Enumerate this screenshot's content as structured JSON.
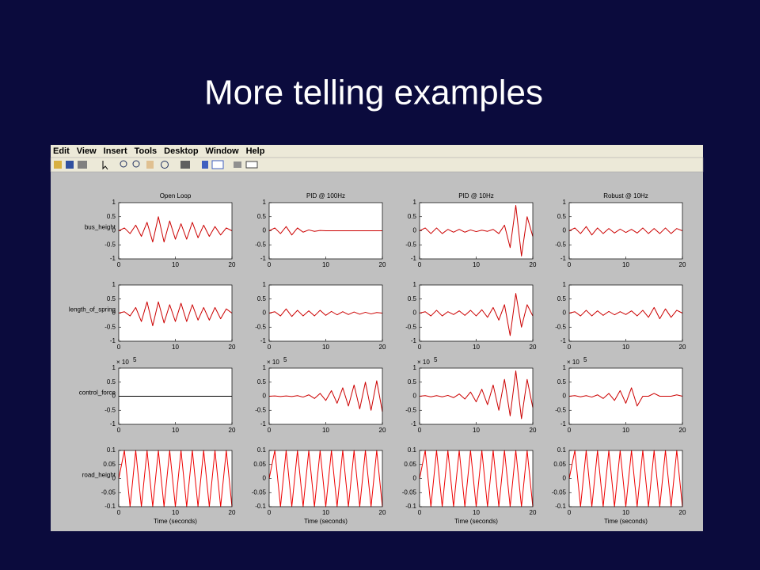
{
  "title": "More telling examples",
  "menu": [
    "Edit",
    "View",
    "Insert",
    "Tools",
    "Desktop",
    "Window",
    "Help"
  ],
  "chart_data": [
    {
      "type": "line",
      "title": "Open Loop",
      "ylabel": "bus_height",
      "color": "#cc0000",
      "xlim": [
        0,
        20
      ],
      "ylim": [
        -1,
        1
      ],
      "xticks": [
        0,
        10,
        20
      ],
      "yticks": [
        -1,
        -0.5,
        0,
        0.5,
        1
      ],
      "x": [
        0,
        1,
        2,
        3,
        4,
        5,
        6,
        7,
        8,
        9,
        10,
        11,
        12,
        13,
        14,
        15,
        16,
        17,
        18,
        19,
        20
      ],
      "values": [
        0,
        0.1,
        -0.1,
        0.2,
        -0.2,
        0.3,
        -0.4,
        0.5,
        -0.4,
        0.35,
        -0.3,
        0.25,
        -0.3,
        0.3,
        -0.25,
        0.2,
        -0.2,
        0.15,
        -0.15,
        0.1,
        0
      ]
    },
    {
      "type": "line",
      "title": "PID @ 100Hz",
      "color": "#cc0000",
      "xlim": [
        0,
        20
      ],
      "ylim": [
        -1,
        1
      ],
      "xticks": [
        0,
        10,
        20
      ],
      "yticks": [
        -1,
        -0.5,
        0,
        0.5,
        1
      ],
      "x": [
        0,
        1,
        2,
        3,
        4,
        5,
        6,
        7,
        8,
        9,
        10,
        11,
        12,
        13,
        14,
        15,
        16,
        17,
        18,
        19,
        20
      ],
      "values": [
        0,
        0.1,
        -0.1,
        0.15,
        -0.15,
        0.1,
        -0.05,
        0.03,
        -0.02,
        0.01,
        0,
        0,
        0,
        0,
        0,
        0,
        0,
        0,
        0,
        0,
        0
      ]
    },
    {
      "type": "line",
      "title": "PID @ 10Hz",
      "color": "#cc0000",
      "xlim": [
        0,
        20
      ],
      "ylim": [
        -1,
        1
      ],
      "xticks": [
        0,
        10,
        20
      ],
      "yticks": [
        -1,
        -0.5,
        0,
        0.5,
        1
      ],
      "x": [
        0,
        1,
        2,
        3,
        4,
        5,
        6,
        7,
        8,
        9,
        10,
        11,
        12,
        13,
        14,
        15,
        16,
        17,
        18,
        19,
        20
      ],
      "values": [
        0,
        0.1,
        -0.1,
        0.1,
        -0.1,
        0.05,
        -0.05,
        0.05,
        -0.05,
        0.03,
        -0.03,
        0.02,
        -0.02,
        0.05,
        -0.1,
        0.2,
        -0.6,
        0.9,
        -0.9,
        0.5,
        -0.2
      ]
    },
    {
      "type": "line",
      "title": "Robust @ 10Hz",
      "color": "#cc0000",
      "xlim": [
        0,
        20
      ],
      "ylim": [
        -1,
        1
      ],
      "xticks": [
        0,
        10,
        20
      ],
      "yticks": [
        -1,
        -0.5,
        0,
        0.5,
        1
      ],
      "x": [
        0,
        1,
        2,
        3,
        4,
        5,
        6,
        7,
        8,
        9,
        10,
        11,
        12,
        13,
        14,
        15,
        16,
        17,
        18,
        19,
        20
      ],
      "values": [
        0,
        0.1,
        -0.1,
        0.15,
        -0.15,
        0.1,
        -0.1,
        0.08,
        -0.08,
        0.06,
        -0.06,
        0.05,
        -0.08,
        0.1,
        -0.1,
        0.08,
        -0.1,
        0.1,
        -0.1,
        0.08,
        0
      ]
    },
    {
      "type": "line",
      "ylabel": "length_of_spring",
      "color": "#cc0000",
      "xlim": [
        0,
        20
      ],
      "ylim": [
        -1,
        1
      ],
      "xticks": [
        0,
        10,
        20
      ],
      "yticks": [
        -1,
        -0.5,
        0,
        0.5,
        1
      ],
      "x": [
        0,
        1,
        2,
        3,
        4,
        5,
        6,
        7,
        8,
        9,
        10,
        11,
        12,
        13,
        14,
        15,
        16,
        17,
        18,
        19,
        20
      ],
      "values": [
        0,
        0.05,
        -0.1,
        0.2,
        -0.3,
        0.4,
        -0.45,
        0.4,
        -0.35,
        0.3,
        -0.3,
        0.35,
        -0.3,
        0.3,
        -0.25,
        0.2,
        -0.25,
        0.2,
        -0.2,
        0.15,
        0
      ]
    },
    {
      "type": "line",
      "color": "#cc0000",
      "xlim": [
        0,
        20
      ],
      "ylim": [
        -1,
        1
      ],
      "xticks": [
        0,
        10,
        20
      ],
      "yticks": [
        -1,
        -0.5,
        0,
        0.5,
        1
      ],
      "x": [
        0,
        1,
        2,
        3,
        4,
        5,
        6,
        7,
        8,
        9,
        10,
        11,
        12,
        13,
        14,
        15,
        16,
        17,
        18,
        19,
        20
      ],
      "values": [
        0,
        0.05,
        -0.1,
        0.15,
        -0.12,
        0.1,
        -0.1,
        0.08,
        -0.1,
        0.1,
        -0.08,
        0.06,
        -0.06,
        0.05,
        -0.05,
        0.04,
        -0.04,
        0.03,
        -0.03,
        0.02,
        0
      ]
    },
    {
      "type": "line",
      "color": "#cc0000",
      "xlim": [
        0,
        20
      ],
      "ylim": [
        -1,
        1
      ],
      "xticks": [
        0,
        10,
        20
      ],
      "yticks": [
        -1,
        -0.5,
        0,
        0.5,
        1
      ],
      "x": [
        0,
        1,
        2,
        3,
        4,
        5,
        6,
        7,
        8,
        9,
        10,
        11,
        12,
        13,
        14,
        15,
        16,
        17,
        18,
        19,
        20
      ],
      "values": [
        0,
        0.05,
        -0.1,
        0.1,
        -0.1,
        0.05,
        -0.05,
        0.08,
        -0.08,
        0.1,
        -0.1,
        0.12,
        -0.15,
        0.2,
        -0.25,
        0.3,
        -0.8,
        0.7,
        -0.5,
        0.3,
        -0.1
      ]
    },
    {
      "type": "line",
      "color": "#cc0000",
      "xlim": [
        0,
        20
      ],
      "ylim": [
        -1,
        1
      ],
      "xticks": [
        0,
        10,
        20
      ],
      "yticks": [
        -1,
        -0.5,
        0,
        0.5,
        1
      ],
      "x": [
        0,
        1,
        2,
        3,
        4,
        5,
        6,
        7,
        8,
        9,
        10,
        11,
        12,
        13,
        14,
        15,
        16,
        17,
        18,
        19,
        20
      ],
      "values": [
        0,
        0.05,
        -0.1,
        0.1,
        -0.1,
        0.08,
        -0.08,
        0.06,
        -0.06,
        0.05,
        -0.05,
        0.08,
        -0.1,
        0.1,
        -0.15,
        0.2,
        -0.2,
        0.15,
        -0.15,
        0.1,
        0
      ]
    },
    {
      "type": "line",
      "ylabel": "control_force",
      "multiplier": {
        "base": "× 10",
        "exponent": "5"
      },
      "color": "#000000",
      "xlim": [
        0,
        20
      ],
      "ylim": [
        -1,
        1
      ],
      "xticks": [
        0,
        10,
        20
      ],
      "yticks": [
        -1,
        -0.5,
        0,
        0.5,
        1
      ],
      "x": [
        0,
        1,
        2,
        3,
        4,
        5,
        6,
        7,
        8,
        9,
        10,
        11,
        12,
        13,
        14,
        15,
        16,
        17,
        18,
        19,
        20
      ],
      "values": [
        0,
        0,
        0,
        0,
        0,
        0,
        0,
        0,
        0,
        0,
        0,
        0,
        0,
        0,
        0,
        0,
        0,
        0,
        0,
        0,
        0
      ]
    },
    {
      "type": "line",
      "multiplier": {
        "base": "× 10",
        "exponent": "5"
      },
      "color": "#cc0000",
      "xlim": [
        0,
        20
      ],
      "ylim": [
        -1,
        1
      ],
      "xticks": [
        0,
        10,
        20
      ],
      "yticks": [
        -1,
        -0.5,
        0,
        0.5,
        1
      ],
      "x": [
        0,
        1,
        2,
        3,
        4,
        5,
        6,
        7,
        8,
        9,
        10,
        11,
        12,
        13,
        14,
        15,
        16,
        17,
        18,
        19,
        20
      ],
      "values": [
        0,
        0.01,
        -0.01,
        0.01,
        -0.01,
        0.02,
        -0.03,
        0.05,
        -0.08,
        0.1,
        -0.15,
        0.2,
        -0.25,
        0.3,
        -0.35,
        0.4,
        -0.45,
        0.5,
        -0.5,
        0.55,
        -0.55
      ]
    },
    {
      "type": "line",
      "multiplier": {
        "base": "× 10",
        "exponent": "5"
      },
      "color": "#cc0000",
      "xlim": [
        0,
        20
      ],
      "ylim": [
        -1,
        1
      ],
      "xticks": [
        0,
        10,
        20
      ],
      "yticks": [
        -1,
        -0.5,
        0,
        0.5,
        1
      ],
      "x": [
        0,
        1,
        2,
        3,
        4,
        5,
        6,
        7,
        8,
        9,
        10,
        11,
        12,
        13,
        14,
        15,
        16,
        17,
        18,
        19,
        20
      ],
      "values": [
        0,
        0.02,
        -0.02,
        0.02,
        -0.02,
        0.03,
        -0.05,
        0.08,
        -0.1,
        0.15,
        -0.2,
        0.25,
        -0.3,
        0.4,
        -0.5,
        0.6,
        -0.7,
        0.9,
        -0.8,
        0.6,
        -0.4
      ]
    },
    {
      "type": "line",
      "multiplier": {
        "base": "× 10",
        "exponent": "5"
      },
      "color": "#cc0000",
      "xlim": [
        0,
        20
      ],
      "ylim": [
        -1,
        1
      ],
      "xticks": [
        0,
        10,
        20
      ],
      "yticks": [
        -1,
        -0.5,
        0,
        0.5,
        1
      ],
      "x": [
        0,
        1,
        2,
        3,
        4,
        5,
        6,
        7,
        8,
        9,
        10,
        11,
        12,
        13,
        14,
        15,
        16,
        17,
        18,
        19,
        20
      ],
      "values": [
        0,
        0.02,
        -0.02,
        0.02,
        -0.03,
        0.05,
        -0.08,
        0.1,
        -0.15,
        0.2,
        -0.25,
        0.3,
        -0.35,
        0,
        0,
        0.1,
        0,
        0,
        0,
        0.05,
        0
      ]
    },
    {
      "type": "line",
      "ylabel": "road_height",
      "xlabel": "Time (seconds)",
      "color": "#ee0000",
      "xlim": [
        0,
        20
      ],
      "ylim": [
        -0.1,
        0.1
      ],
      "xticks": [
        0,
        10,
        20
      ],
      "yticks": [
        -0.1,
        -0.05,
        0,
        0.05,
        0.1
      ],
      "x": [
        0,
        1,
        2,
        3,
        4,
        5,
        6,
        7,
        8,
        9,
        10,
        11,
        12,
        13,
        14,
        15,
        16,
        17,
        18,
        19,
        20
      ],
      "values": [
        0,
        0.1,
        -0.1,
        0.1,
        -0.1,
        0.1,
        -0.1,
        0.1,
        -0.1,
        0.1,
        -0.1,
        0.1,
        -0.1,
        0.1,
        -0.1,
        0.1,
        -0.1,
        0.1,
        -0.1,
        0.1,
        -0.1
      ]
    },
    {
      "type": "line",
      "xlabel": "Time (seconds)",
      "color": "#ee0000",
      "xlim": [
        0,
        20
      ],
      "ylim": [
        -0.1,
        0.1
      ],
      "xticks": [
        0,
        10,
        20
      ],
      "yticks": [
        -0.1,
        -0.05,
        0,
        0.05,
        0.1
      ],
      "x": [
        0,
        1,
        2,
        3,
        4,
        5,
        6,
        7,
        8,
        9,
        10,
        11,
        12,
        13,
        14,
        15,
        16,
        17,
        18,
        19,
        20
      ],
      "values": [
        0,
        0.1,
        -0.1,
        0.1,
        -0.1,
        0.1,
        -0.1,
        0.1,
        -0.1,
        0.1,
        -0.1,
        0.1,
        -0.1,
        0.1,
        -0.1,
        0.1,
        -0.1,
        0.1,
        -0.1,
        0.1,
        -0.1
      ]
    },
    {
      "type": "line",
      "xlabel": "Time (seconds)",
      "color": "#ee0000",
      "xlim": [
        0,
        20
      ],
      "ylim": [
        -0.1,
        0.1
      ],
      "xticks": [
        0,
        10,
        20
      ],
      "yticks": [
        -0.1,
        -0.05,
        0,
        0.05,
        0.1
      ],
      "x": [
        0,
        1,
        2,
        3,
        4,
        5,
        6,
        7,
        8,
        9,
        10,
        11,
        12,
        13,
        14,
        15,
        16,
        17,
        18,
        19,
        20
      ],
      "values": [
        0,
        0.1,
        -0.1,
        0.1,
        -0.1,
        0.1,
        -0.1,
        0.1,
        -0.1,
        0.1,
        -0.1,
        0.1,
        -0.1,
        0.1,
        -0.1,
        0.1,
        -0.1,
        0.1,
        -0.1,
        0.1,
        -0.1
      ]
    },
    {
      "type": "line",
      "xlabel": "Time (seconds)",
      "color": "#ee0000",
      "xlim": [
        0,
        20
      ],
      "ylim": [
        -0.1,
        0.1
      ],
      "xticks": [
        0,
        10,
        20
      ],
      "yticks": [
        -0.1,
        -0.05,
        0,
        0.05,
        0.1
      ],
      "x": [
        0,
        1,
        2,
        3,
        4,
        5,
        6,
        7,
        8,
        9,
        10,
        11,
        12,
        13,
        14,
        15,
        16,
        17,
        18,
        19,
        20
      ],
      "values": [
        0,
        0.1,
        -0.1,
        0.1,
        -0.1,
        0.1,
        -0.1,
        0.1,
        -0.1,
        0.1,
        -0.1,
        0.1,
        -0.1,
        0.1,
        -0.1,
        0.1,
        -0.1,
        0.1,
        -0.1,
        0.1,
        -0.1
      ]
    }
  ]
}
